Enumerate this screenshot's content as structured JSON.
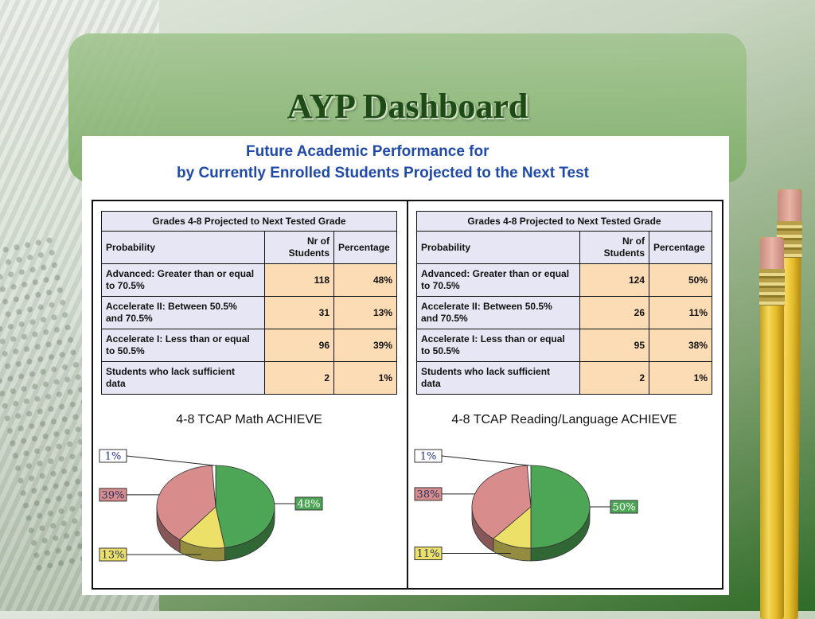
{
  "page": {
    "title": "AYP Dashboard",
    "headline_line1": "Future Academic Performance for",
    "headline_line2": "by Currently Enrolled Students Projected to the Next Test"
  },
  "colors": {
    "advanced": "#4da655",
    "accelerate2": "#ece068",
    "accelerate1": "#d98c8c",
    "lack": "#ffffff",
    "table_header_bg": "#e6e6f4",
    "table_value_bg": "#fcdcb4"
  },
  "tables": [
    {
      "caption": "Grades 4-8 Projected to Next Tested Grade",
      "col_probability": "Probability",
      "col_nr_line1": "Nr of",
      "col_nr_line2": "Students",
      "col_percentage": "Percentage",
      "rows": [
        {
          "label_line1": "Advanced: Greater than or equal",
          "label_line2": "to 70.5%",
          "nr": "118",
          "pct": "48%"
        },
        {
          "label_line1": "Accelerate II: Between 50.5%",
          "label_line2": "and 70.5%",
          "nr": "31",
          "pct": "13%"
        },
        {
          "label_line1": "Accelerate I: Less than or equal",
          "label_line2": "to 50.5%",
          "nr": "96",
          "pct": "39%"
        },
        {
          "label_line1": "Students who lack sufficient",
          "label_line2": "data",
          "nr": "2",
          "pct": "1%"
        }
      ]
    },
    {
      "caption": "Grades 4-8 Projected to Next Tested Grade",
      "col_probability": "Probability",
      "col_nr_line1": "Nr of",
      "col_nr_line2": "Students",
      "col_percentage": "Percentage",
      "rows": [
        {
          "label_line1": "Advanced: Greater than or equal",
          "label_line2": "to 70.5%",
          "nr": "124",
          "pct": "50%"
        },
        {
          "label_line1": "Accelerate II: Between 50.5%",
          "label_line2": "and 70.5%",
          "nr": "26",
          "pct": "11%"
        },
        {
          "label_line1": "Accelerate I: Less than or equal",
          "label_line2": "to 50.5%",
          "nr": "95",
          "pct": "38%"
        },
        {
          "label_line1": "Students who lack sufficient",
          "label_line2": "data",
          "nr": "2",
          "pct": "1%"
        }
      ]
    }
  ],
  "chart_data": [
    {
      "type": "pie",
      "title": "4-8 TCAP Math ACHIEVE",
      "slices": [
        {
          "label": "48%",
          "value": 48,
          "color": "#4da655"
        },
        {
          "label": "13%",
          "value": 13,
          "color": "#ece068"
        },
        {
          "label": "39%",
          "value": 39,
          "color": "#d98c8c"
        },
        {
          "label": "1%",
          "value": 1,
          "color": "#ffffff"
        }
      ]
    },
    {
      "type": "pie",
      "title": "4-8 TCAP Reading/Language ACHIEVE",
      "slices": [
        {
          "label": "50%",
          "value": 50,
          "color": "#4da655"
        },
        {
          "label": "11%",
          "value": 11,
          "color": "#ece068"
        },
        {
          "label": "38%",
          "value": 38,
          "color": "#d98c8c"
        },
        {
          "label": "1%",
          "value": 1,
          "color": "#ffffff"
        }
      ]
    }
  ]
}
